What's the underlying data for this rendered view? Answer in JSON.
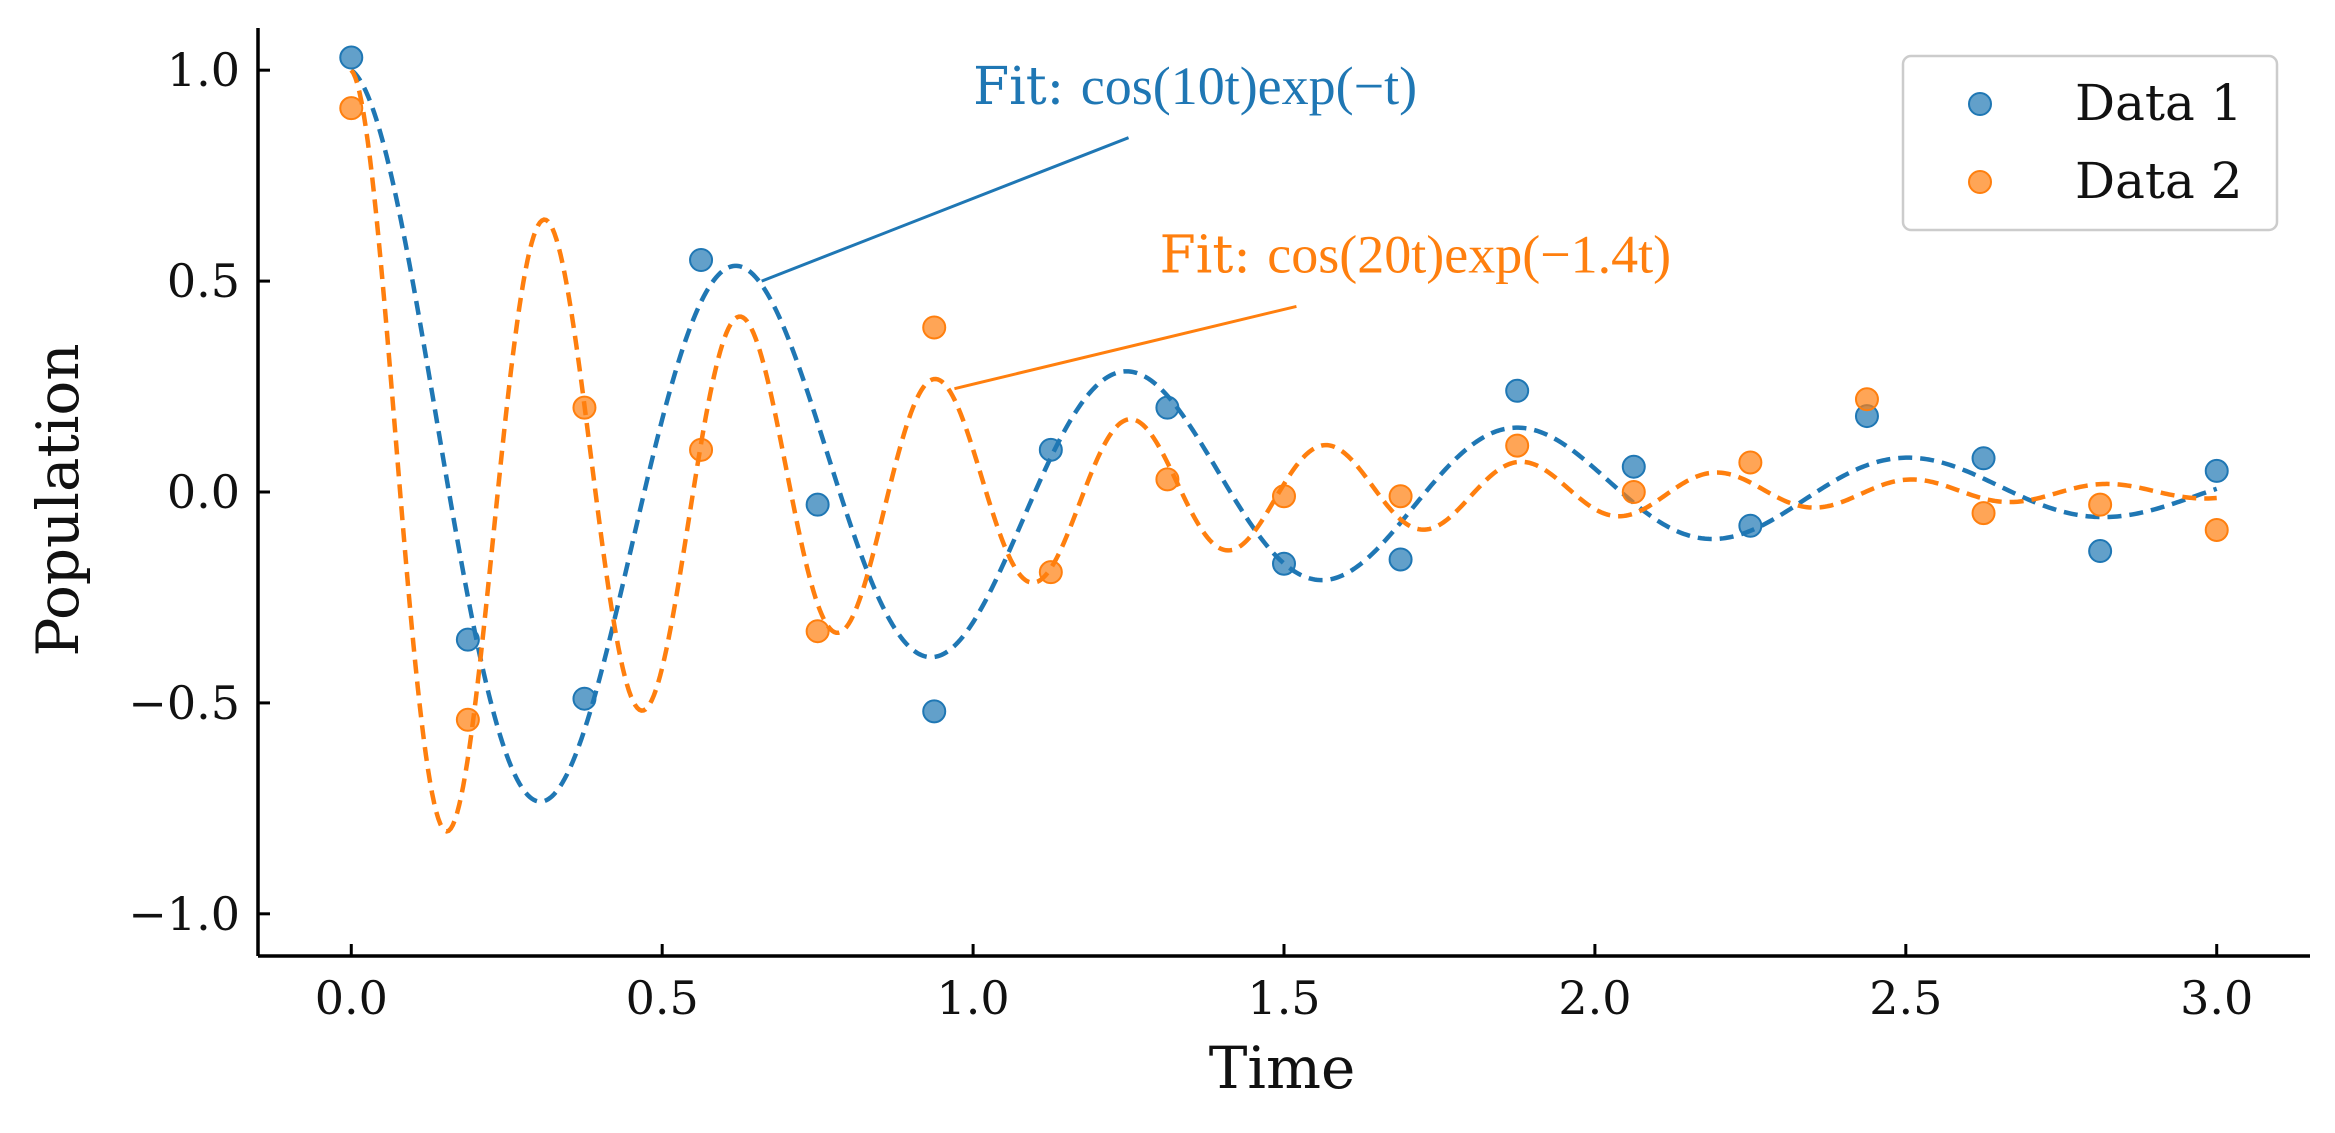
{
  "chart_data": {
    "type": "scatter",
    "xlabel": "Time",
    "ylabel": "Population",
    "xlim": [
      -0.15,
      3.15
    ],
    "ylim": [
      -1.1,
      1.1
    ],
    "xticks": [
      0.0,
      0.5,
      1.0,
      1.5,
      2.0,
      2.5,
      3.0
    ],
    "yticks": [
      -1.0,
      -0.5,
      0.0,
      0.5,
      1.0
    ],
    "xtick_labels": [
      "0.0",
      "0.5",
      "1.0",
      "1.5",
      "2.0",
      "2.5",
      "3.0"
    ],
    "ytick_labels": [
      "−1.0",
      "−0.5",
      "0.0",
      "0.5",
      "1.0"
    ],
    "grid": false,
    "legend_position": "top-right",
    "series": [
      {
        "name": "Data 1",
        "color": "#1f77b4",
        "kind": "scatter",
        "x": [
          0.0,
          0.1875,
          0.375,
          0.5625,
          0.75,
          0.9375,
          1.125,
          1.3125,
          1.5,
          1.6875,
          1.875,
          2.0625,
          2.25,
          2.4375,
          2.625,
          2.8125,
          3.0
        ],
        "y": [
          1.03,
          -0.35,
          -0.49,
          0.55,
          -0.03,
          -0.52,
          0.1,
          0.2,
          -0.17,
          -0.16,
          0.24,
          0.06,
          -0.08,
          0.18,
          0.08,
          -0.14,
          0.05
        ]
      },
      {
        "name": "Data 2",
        "color": "#ff7f0e",
        "kind": "scatter",
        "x": [
          0.0,
          0.1875,
          0.375,
          0.5625,
          0.75,
          0.9375,
          1.125,
          1.3125,
          1.5,
          1.6875,
          1.875,
          2.0625,
          2.25,
          2.4375,
          2.625,
          2.8125,
          3.0
        ],
        "y": [
          0.91,
          -0.54,
          0.2,
          0.1,
          -0.33,
          0.39,
          -0.19,
          0.03,
          -0.01,
          -0.01,
          0.11,
          0.0,
          0.07,
          0.22,
          -0.05,
          -0.03,
          -0.09
        ]
      }
    ],
    "fits": [
      {
        "color": "#1f77b4",
        "freq": 10,
        "decay": 1.0,
        "label_prefix": "Fit: ",
        "label_formula": "cos(10t)exp(−t)",
        "label_x": 1.0,
        "label_y": 0.92,
        "arrow_from": [
          1.25,
          0.84
        ],
        "arrow_to": [
          0.66,
          0.5
        ]
      },
      {
        "color": "#ff7f0e",
        "freq": 20,
        "decay": 1.4,
        "label_prefix": "Fit: ",
        "label_formula": "cos(20t)exp(−1.4t)",
        "label_x": 1.3,
        "label_y": 0.52,
        "arrow_from": [
          1.52,
          0.44
        ],
        "arrow_to": [
          0.97,
          0.245
        ]
      }
    ]
  }
}
